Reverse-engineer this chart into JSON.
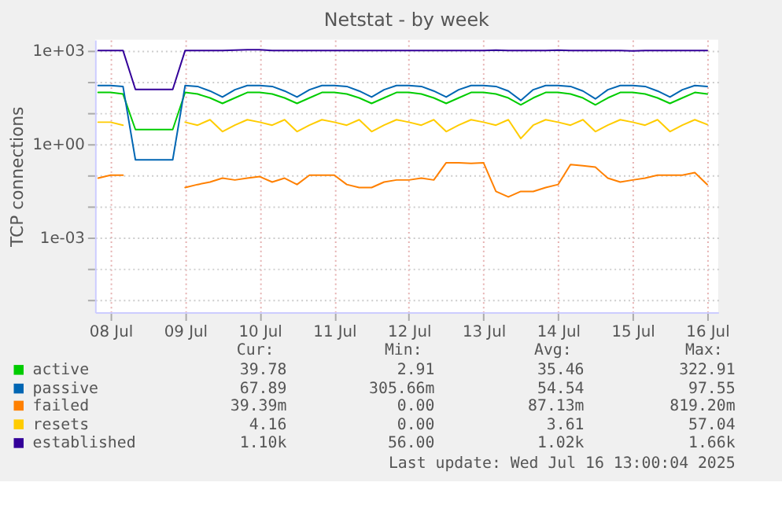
{
  "chart_data": {
    "type": "line",
    "title": "Netstat - by week",
    "ylabel": "TCP connections",
    "log": true,
    "grid": true,
    "legend": "bottom",
    "x": [
      "2025-07-07T20:00",
      "2025-07-08T00:00",
      "2025-07-08T04:00",
      "2025-07-08T08:00",
      "2025-07-08T12:00",
      "2025-07-08T16:00",
      "2025-07-08T20:00",
      "2025-07-09T00:00",
      "2025-07-09T04:00",
      "2025-07-09T08:00",
      "2025-07-09T12:00",
      "2025-07-09T16:00",
      "2025-07-09T20:00",
      "2025-07-10T00:00",
      "2025-07-10T04:00",
      "2025-07-10T08:00",
      "2025-07-10T12:00",
      "2025-07-10T16:00",
      "2025-07-10T20:00",
      "2025-07-11T00:00",
      "2025-07-11T04:00",
      "2025-07-11T08:00",
      "2025-07-11T12:00",
      "2025-07-11T16:00",
      "2025-07-11T20:00",
      "2025-07-12T00:00",
      "2025-07-12T04:00",
      "2025-07-12T08:00",
      "2025-07-12T12:00",
      "2025-07-12T16:00",
      "2025-07-12T20:00",
      "2025-07-13T00:00",
      "2025-07-13T04:00",
      "2025-07-13T08:00",
      "2025-07-13T12:00",
      "2025-07-13T16:00",
      "2025-07-13T20:00",
      "2025-07-14T00:00",
      "2025-07-14T04:00",
      "2025-07-14T08:00",
      "2025-07-14T12:00",
      "2025-07-14T16:00",
      "2025-07-14T20:00",
      "2025-07-15T00:00",
      "2025-07-15T04:00",
      "2025-07-15T08:00",
      "2025-07-15T12:00",
      "2025-07-15T16:00",
      "2025-07-15T20:00",
      "2025-07-16T00:00"
    ],
    "series": [
      {
        "name": "active",
        "color": "#00cc00",
        "values": [
          45,
          45,
          40,
          2.9,
          2.9,
          2.9,
          2.9,
          45,
          40,
          30,
          20,
          30,
          45,
          45,
          40,
          30,
          20,
          30,
          45,
          45,
          40,
          30,
          20,
          30,
          45,
          45,
          40,
          30,
          20,
          30,
          45,
          45,
          40,
          30,
          18,
          30,
          45,
          45,
          40,
          30,
          18,
          30,
          45,
          45,
          40,
          30,
          20,
          30,
          45,
          40
        ]
      },
      {
        "name": "passive",
        "color": "#0066b3",
        "values": [
          75,
          75,
          70,
          0.31,
          0.31,
          0.31,
          0.31,
          75,
          70,
          50,
          32,
          55,
          75,
          75,
          70,
          50,
          32,
          55,
          75,
          75,
          70,
          50,
          32,
          55,
          75,
          75,
          70,
          50,
          32,
          55,
          75,
          75,
          70,
          50,
          25,
          55,
          75,
          75,
          70,
          50,
          28,
          55,
          75,
          75,
          70,
          50,
          32,
          55,
          75,
          70
        ]
      },
      {
        "name": "failed",
        "color": "#ff8000",
        "x": [
          "2025-07-09T00:00",
          "2025-07-09T04:00",
          "2025-07-09T08:00",
          "2025-07-09T12:00",
          "2025-07-09T16:00",
          "2025-07-09T20:00",
          "2025-07-10T00:00",
          "2025-07-10T04:00",
          "2025-07-10T08:00",
          "2025-07-10T12:00",
          "2025-07-10T16:00",
          "2025-07-10T20:00",
          "2025-07-11T00:00",
          "2025-07-11T04:00",
          "2025-07-11T08:00",
          "2025-07-11T12:00",
          "2025-07-11T16:00",
          "2025-07-11T20:00",
          "2025-07-12T00:00",
          "2025-07-12T04:00",
          "2025-07-12T08:00",
          "2025-07-12T12:00",
          "2025-07-12T16:00",
          "2025-07-12T20:00",
          "2025-07-13T00:00",
          "2025-07-13T04:00",
          "2025-07-13T08:00",
          "2025-07-13T12:00",
          "2025-07-13T16:00",
          "2025-07-13T20:00",
          "2025-07-14T00:00",
          "2025-07-14T04:00",
          "2025-07-14T08:00",
          "2025-07-14T12:00",
          "2025-07-14T16:00",
          "2025-07-14T20:00",
          "2025-07-15T00:00",
          "2025-07-15T04:00",
          "2025-07-15T08:00",
          "2025-07-15T12:00",
          "2025-07-15T16:00",
          "2025-07-15T20:00",
          "2025-07-16T00:00"
        ],
        "values": [
          0.04,
          0.05,
          0.06,
          0.08,
          0.07,
          0.08,
          0.09,
          0.06,
          0.08,
          0.05,
          0.1,
          0.1,
          0.1,
          0.05,
          0.04,
          0.04,
          0.06,
          0.07,
          0.07,
          0.08,
          0.07,
          0.25,
          0.25,
          0.24,
          0.25,
          0.03,
          0.02,
          0.03,
          0.03,
          0.04,
          0.05,
          0.22,
          0.2,
          0.18,
          0.08,
          0.06,
          0.07,
          0.08,
          0.1,
          0.1,
          0.1,
          0.12,
          0.05
        ]
      },
      {
        "name": "resets",
        "color": "#ffcc00",
        "x": [
          "2025-07-09T00:00",
          "2025-07-09T04:00",
          "2025-07-09T08:00",
          "2025-07-09T12:00",
          "2025-07-09T16:00",
          "2025-07-09T20:00",
          "2025-07-10T00:00",
          "2025-07-10T04:00",
          "2025-07-10T08:00",
          "2025-07-10T12:00",
          "2025-07-10T16:00",
          "2025-07-10T20:00",
          "2025-07-11T00:00",
          "2025-07-11T04:00",
          "2025-07-11T08:00",
          "2025-07-11T12:00",
          "2025-07-11T16:00",
          "2025-07-11T20:00",
          "2025-07-12T00:00",
          "2025-07-12T04:00",
          "2025-07-12T08:00",
          "2025-07-12T12:00",
          "2025-07-12T16:00",
          "2025-07-12T20:00",
          "2025-07-13T00:00",
          "2025-07-13T04:00",
          "2025-07-13T08:00",
          "2025-07-13T12:00",
          "2025-07-13T16:00",
          "2025-07-13T20:00",
          "2025-07-14T00:00",
          "2025-07-14T04:00",
          "2025-07-14T08:00",
          "2025-07-14T12:00",
          "2025-07-14T16:00",
          "2025-07-14T20:00",
          "2025-07-15T00:00",
          "2025-07-15T04:00",
          "2025-07-15T08:00",
          "2025-07-15T12:00",
          "2025-07-15T16:00",
          "2025-07-15T20:00",
          "2025-07-16T00:00"
        ],
        "values": [
          5,
          4,
          6,
          2.5,
          4,
          6,
          5,
          4,
          6,
          2.5,
          4,
          6,
          5,
          4,
          6,
          2.5,
          4,
          6,
          5,
          4,
          6,
          2.5,
          4,
          6,
          5,
          4,
          6,
          1.5,
          4,
          6,
          5,
          4,
          6,
          2.5,
          4,
          6,
          5,
          4,
          6,
          2.5,
          4,
          6,
          4.2
        ]
      },
      {
        "name": "established",
        "color": "#330099",
        "values": [
          1000,
          1000,
          1000,
          56,
          56,
          56,
          56,
          1000,
          1000,
          1000,
          1000,
          1020,
          1050,
          1050,
          1000,
          1000,
          1000,
          1000,
          1000,
          1000,
          1000,
          1000,
          1000,
          1000,
          1000,
          990,
          1000,
          1000,
          1000,
          1000,
          1000,
          1000,
          1030,
          1000,
          1000,
          1000,
          1000,
          1020,
          1000,
          1000,
          1000,
          1000,
          1000,
          960,
          1000,
          1000,
          1000,
          1000,
          1000,
          1000
        ]
      },
      {
        "color": "#ff8000",
        "x": [
          "2025-07-07T20:00",
          "2025-07-08T00:00",
          "2025-07-08T04:00"
        ],
        "values": [
          0.08,
          0.1,
          0.1
        ]
      },
      {
        "color": "#ffcc00",
        "x": [
          "2025-07-07T20:00",
          "2025-07-08T00:00",
          "2025-07-08T04:00"
        ],
        "values": [
          5,
          5,
          4
        ]
      }
    ],
    "xlim": [
      "2025-07-07T19:00",
      "2025-07-16T03:30"
    ],
    "xticks": [
      {
        "value": "2025-07-08",
        "label": "08 Jul"
      },
      {
        "value": "2025-07-09",
        "label": "09 Jul"
      },
      {
        "value": "2025-07-10",
        "label": "10 Jul"
      },
      {
        "value": "2025-07-11",
        "label": "11 Jul"
      },
      {
        "value": "2025-07-12",
        "label": "12 Jul"
      },
      {
        "value": "2025-07-13",
        "label": "13 Jul"
      },
      {
        "value": "2025-07-14",
        "label": "14 Jul"
      },
      {
        "value": "2025-07-15",
        "label": "15 Jul"
      },
      {
        "value": "2025-07-16",
        "label": "16 Jul"
      }
    ],
    "ylim": [
      4e-06,
      2200
    ],
    "yticks": [
      {
        "value": 1e-05,
        "label": null
      },
      {
        "value": 0.0001,
        "label": null
      },
      {
        "value": 0.001,
        "label": "1e-03"
      },
      {
        "value": 0.01,
        "label": null
      },
      {
        "value": 0.1,
        "label": null
      },
      {
        "value": 1,
        "label": "1e+00"
      },
      {
        "value": 10,
        "label": null
      },
      {
        "value": 100,
        "label": null
      },
      {
        "value": 1000,
        "label": "1e+03"
      }
    ],
    "annotations": [
      "Cur:",
      "Min:",
      "Avg:",
      "Max:",
      "39.78",
      "2.91",
      "35.46",
      "322.91",
      "67.89",
      "305.66m",
      "54.54",
      "97.55",
      "39.39m",
      "0.00",
      "87.13m",
      "819.20m",
      "4.16",
      "0.00",
      "3.61",
      "57.04",
      "1.10k",
      "56.00",
      "1.02k",
      "1.66k",
      "Last update: Wed Jul 16 13:00:04 2025"
    ]
  }
}
